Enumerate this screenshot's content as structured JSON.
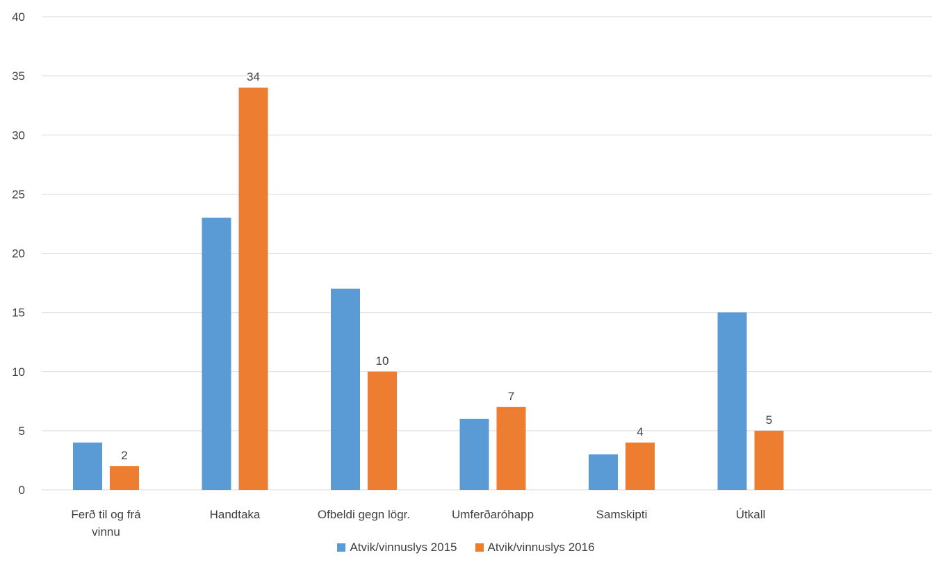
{
  "chart_data": {
    "type": "bar",
    "categories": [
      [
        "Ferð til og frá",
        "vinnu"
      ],
      [
        "Handtaka"
      ],
      [
        "Ofbeldi gegn lögr."
      ],
      [
        "Umferðaróhapp"
      ],
      [
        "Samskipti"
      ],
      [
        "Útkall"
      ]
    ],
    "series": [
      {
        "name": "Atvik/vinnuslys 2015",
        "values": [
          4,
          23,
          17,
          6,
          3,
          15
        ],
        "color": "#5B9BD5",
        "show_labels": false
      },
      {
        "name": "Atvik/vinnuslys 2016",
        "values": [
          2,
          34,
          10,
          7,
          4,
          5
        ],
        "color": "#ED7D31",
        "show_labels": true
      }
    ],
    "ylim": [
      0,
      40
    ],
    "yticks": [
      0,
      5,
      10,
      15,
      20,
      25,
      30,
      35,
      40
    ],
    "grid": true,
    "gridColor": "#D9D9D9",
    "legend_position": "bottom"
  }
}
